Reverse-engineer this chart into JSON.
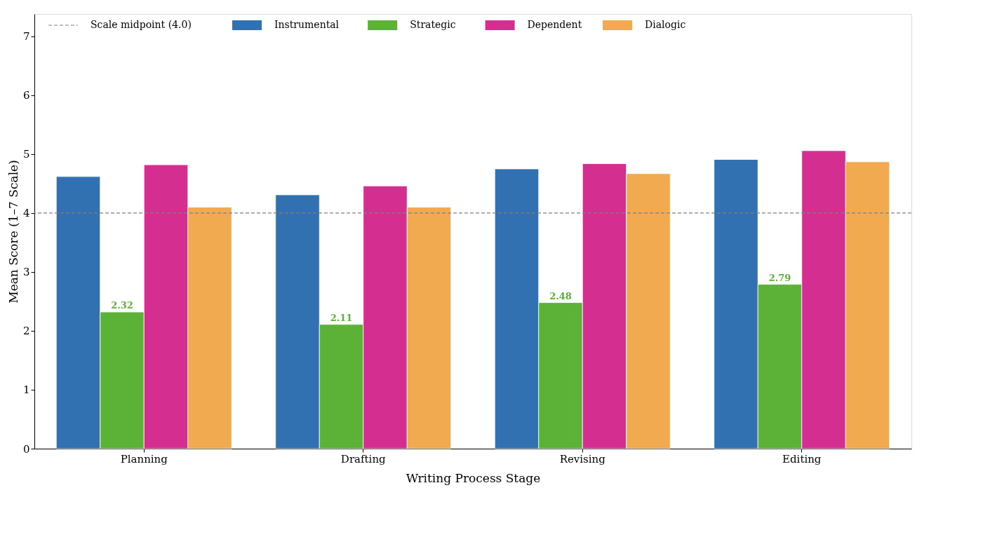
{
  "chart_data": {
    "type": "bar",
    "xlabel": "Writing Process Stage",
    "ylabel": "Mean Score (1–7 Scale)",
    "categories": [
      "Planning",
      "Drafting",
      "Revising",
      "Editing"
    ],
    "series": [
      {
        "name": "Instrumental",
        "color": "#3171b1",
        "values": [
          4.62,
          4.31,
          4.75,
          4.91
        ]
      },
      {
        "name": "Strategic",
        "color": "#5cb137",
        "values": [
          2.32,
          2.11,
          2.48,
          2.79
        ],
        "value_labels": [
          "2.32",
          "2.11",
          "2.48",
          "2.79"
        ]
      },
      {
        "name": "Dependent",
        "color": "#d32e90",
        "values": [
          4.82,
          4.46,
          4.84,
          5.06
        ]
      },
      {
        "name": "Dialogic",
        "color": "#f1aa50",
        "values": [
          4.1,
          4.1,
          4.67,
          4.87
        ]
      }
    ],
    "ylim": [
      0,
      7.38
    ],
    "yticks": [
      0,
      1,
      2,
      3,
      4,
      5,
      6,
      7
    ],
    "ref_lines": [
      {
        "axis": "y",
        "value": 4.0,
        "label": "Scale midpoint (4.0)",
        "color": "#808080",
        "line_style": "dashed"
      }
    ],
    "grid": false,
    "legend": "top"
  }
}
